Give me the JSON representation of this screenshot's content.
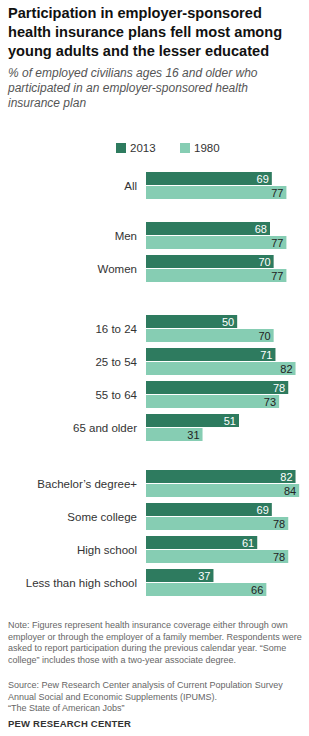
{
  "chart_data": {
    "type": "bar",
    "orientation": "horizontal",
    "title": "Participation in employer-sponsored health insurance plans fell most among young adults and the lesser educated",
    "subtitle": "% of employed civilians ages 16 and older who participated in an employer-sponsored health insurance plan",
    "categories": [
      "All",
      "Men",
      "Women",
      "16 to 24",
      "25 to 54",
      "55 to 64",
      "65 and older",
      "Bachelor’s degree+",
      "Some college",
      "High school",
      "Less than high school"
    ],
    "series": [
      {
        "name": "2013",
        "color": "#2e7b5f",
        "values": [
          69,
          68,
          70,
          50,
          71,
          78,
          51,
          82,
          69,
          61,
          37
        ]
      },
      {
        "name": "1980",
        "color": "#86cdb3",
        "values": [
          77,
          77,
          77,
          70,
          82,
          73,
          31,
          84,
          78,
          78,
          66
        ]
      }
    ],
    "ylim": [
      0,
      85
    ],
    "data_labels": true,
    "legend": "top",
    "grid": false,
    "note": "Note: Figures represent health insurance coverage either through own employer or through the employer of a family member. Respondents were asked to report participation during the previous calendar year. “Some college” includes those with a two-year associate degree.",
    "source": [
      "Source: Pew Research Center analysis of Current Population Survey Annual Social and Economic Supplements (IPUMS).",
      "“The State of American Jobs”"
    ],
    "footer": "PEW RESEARCH CENTER"
  }
}
